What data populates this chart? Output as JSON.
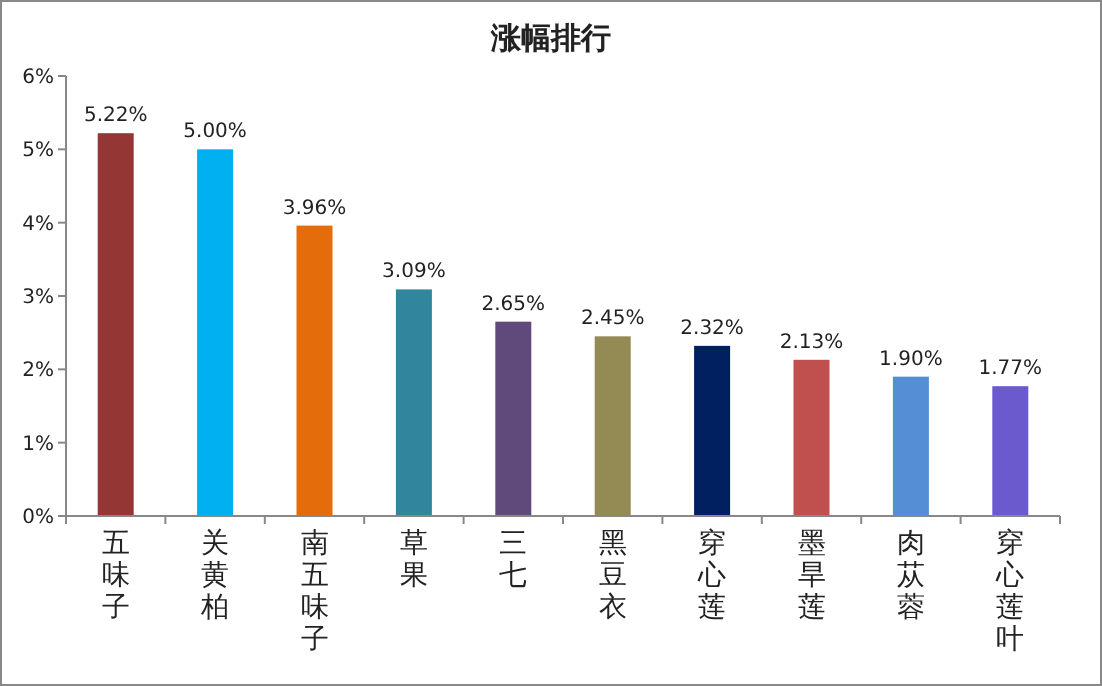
{
  "chart_data": {
    "type": "bar",
    "title": "涨幅排行",
    "categories": [
      "五味子",
      "关黄柏",
      "南五味子",
      "草果",
      "三七",
      "黑豆衣",
      "穿心莲",
      "墨旱莲",
      "肉苁蓉",
      "穿心莲叶"
    ],
    "values": [
      5.22,
      5.0,
      3.96,
      3.09,
      2.65,
      2.45,
      2.32,
      2.13,
      1.9,
      1.77
    ],
    "value_labels": [
      "5.22%",
      "5.00%",
      "3.96%",
      "3.09%",
      "2.65%",
      "2.45%",
      "2.32%",
      "2.13%",
      "1.90%",
      "1.77%"
    ],
    "colors": [
      "#943634",
      "#00b0f0",
      "#e46c0a",
      "#31859c",
      "#604a7b",
      "#948a54",
      "#002060",
      "#c0504d",
      "#558ed5",
      "#6a5acd"
    ],
    "ylim": [
      0,
      6
    ],
    "yticks": [
      {
        "value": 0,
        "label": "0%"
      },
      {
        "value": 1,
        "label": "1%"
      },
      {
        "value": 2,
        "label": "2%"
      },
      {
        "value": 3,
        "label": "3%"
      },
      {
        "value": 4,
        "label": "4%"
      },
      {
        "value": 5,
        "label": "5%"
      },
      {
        "value": 6,
        "label": "6%"
      }
    ],
    "grid": false
  }
}
